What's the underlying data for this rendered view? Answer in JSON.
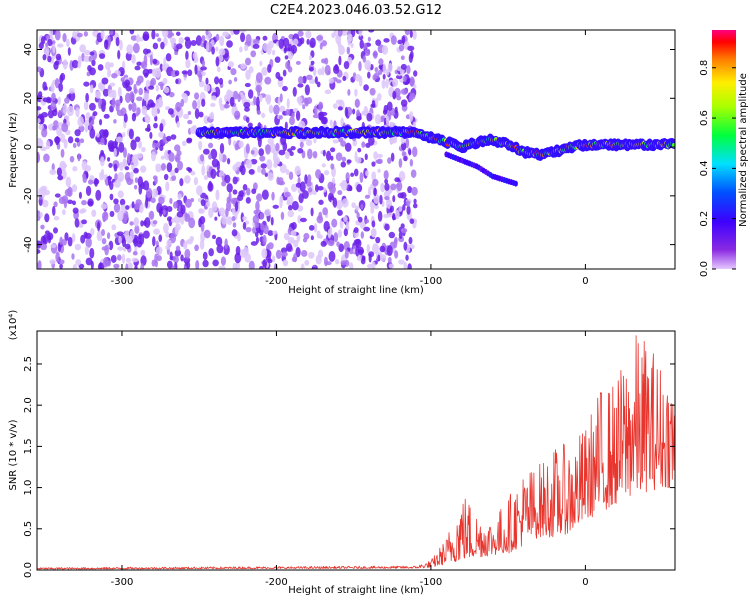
{
  "title": "C2E4.2023.046.03.52.G12",
  "chart_data": [
    {
      "type": "heatmap",
      "title": "C2E4.2023.046.03.52.G12",
      "xlabel": "Height of straight line (km)",
      "ylabel": "Frequency (Hz)",
      "xlim": [
        -355,
        58
      ],
      "ylim": [
        -50,
        48
      ],
      "xticks": [
        -300,
        -200,
        -100,
        0
      ],
      "yticks": [
        -40,
        -20,
        0,
        20,
        40
      ],
      "colorbar": {
        "label": "Normalized spectral amplitude",
        "range": [
          0.0,
          0.95
        ],
        "ticks": [
          "0.0",
          "0.2",
          "0.4",
          "0.6",
          "0.8"
        ],
        "tick_values": [
          0.0,
          0.2,
          0.4,
          0.6,
          0.8
        ]
      },
      "broadband_noise_region": {
        "x_range": [
          -355,
          -110
        ],
        "freq_range": [
          -50,
          48
        ]
      },
      "signal_ridge": {
        "x": [
          -250,
          -200,
          -150,
          -110,
          -100,
          -80,
          -70,
          -60,
          -50,
          -40,
          -30,
          -20,
          -10,
          0,
          20,
          40,
          58
        ],
        "freq": [
          6,
          6,
          6,
          6,
          4,
          0,
          2,
          3,
          1,
          -2,
          -3,
          -2,
          0,
          1,
          1,
          1,
          1
        ]
      },
      "secondary_branch": {
        "x": [
          -90,
          -70,
          -60,
          -45
        ],
        "freq": [
          -3,
          -8,
          -12,
          -15
        ]
      }
    },
    {
      "type": "line",
      "xlabel": "Height of straight line (km)",
      "ylabel": "SNR (10 * v/v)",
      "y_scale_label": "(x10⁴)",
      "y_scale_factor": 10000,
      "xlim": [
        -355,
        58
      ],
      "ylim": [
        0,
        2.9
      ],
      "xticks": [
        -300,
        -200,
        -100,
        0
      ],
      "yticks": [
        0.0,
        0.5,
        1.0,
        1.5,
        2.0,
        2.5
      ],
      "ytick_labels": [
        "0.0",
        "0.5",
        "1.0",
        "1.5",
        "2.0",
        "2.5"
      ],
      "series": [
        {
          "color": "#e8352e",
          "envelope_x": [
            -355,
            -110,
            -100,
            -90,
            -80,
            -70,
            -60,
            -50,
            -40,
            -30,
            -20,
            -10,
            0,
            10,
            20,
            30,
            40,
            50,
            58
          ],
          "envelope_base": [
            0.01,
            0.02,
            0.03,
            0.07,
            0.12,
            0.15,
            0.18,
            0.2,
            0.3,
            0.4,
            0.4,
            0.45,
            0.6,
            0.7,
            0.8,
            0.9,
            0.95,
            1.0,
            1.0
          ],
          "envelope_peak": [
            0.03,
            0.05,
            0.12,
            0.4,
            1.0,
            0.72,
            0.62,
            0.9,
            1.22,
            1.3,
            1.5,
            1.55,
            1.75,
            2.25,
            2.3,
            2.9,
            2.85,
            2.5,
            2.4
          ]
        }
      ]
    }
  ]
}
